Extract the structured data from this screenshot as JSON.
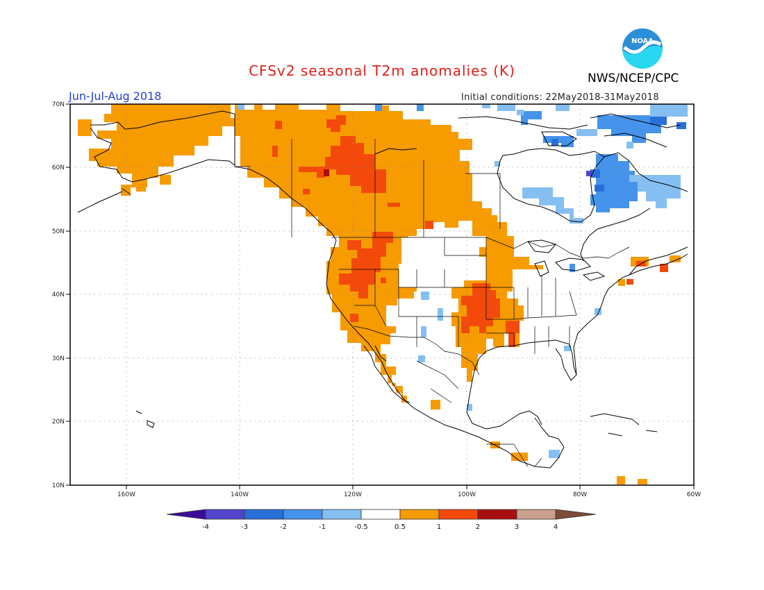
{
  "header": {
    "title": "CFSv2 seasonal T2m anomalies (K)",
    "agency": "NWS/NCEP/CPC",
    "logo_text": "NOAA",
    "season": "Jun-Jul-Aug 2018",
    "initial_conditions": "Initial conditions: 22May2018-31May2018"
  },
  "map": {
    "projection": "lat-lon",
    "extent": {
      "lon_min": -170,
      "lon_max": -60,
      "lat_min": 10,
      "lat_max": 70
    },
    "lat_labels": [
      "70N",
      "60N",
      "50N",
      "40N",
      "30N",
      "20N",
      "10N"
    ],
    "lon_labels": [
      "160W",
      "140W",
      "120W",
      "100W",
      "80W",
      "60W"
    ]
  },
  "colorbar": {
    "labels": [
      "-4",
      "-3",
      "-2",
      "-1",
      "-0.5",
      "0.5",
      "1",
      "2",
      "3",
      "4"
    ],
    "colors": [
      "#3b0c9a",
      "#5145cc",
      "#2a6fd8",
      "#4593ea",
      "#85bff2",
      "#ffffff",
      "#f69b00",
      "#f34a0b",
      "#a80f0f",
      "#c8a08c",
      "#7e4b39"
    ]
  },
  "anomaly_regions": [
    {
      "name": "alaska-warm",
      "color": "#f69b00"
    },
    {
      "name": "western-canada-warm",
      "color": "#f69b00"
    },
    {
      "name": "northwest-canada-hot",
      "color": "#f34a0b"
    },
    {
      "name": "western-us-warm",
      "color": "#f69b00"
    },
    {
      "name": "northwest-us-hot",
      "color": "#f34a0b"
    },
    {
      "name": "southern-plains-hot",
      "color": "#f34a0b"
    },
    {
      "name": "mexico-warm",
      "color": "#f69b00"
    },
    {
      "name": "labrador-cool",
      "color": "#4593ea"
    },
    {
      "name": "hudson-bay-cool",
      "color": "#85bff2"
    },
    {
      "name": "arctic-cool",
      "color": "#85bff2"
    },
    {
      "name": "new-england-hot",
      "color": "#f34a0b"
    }
  ]
}
